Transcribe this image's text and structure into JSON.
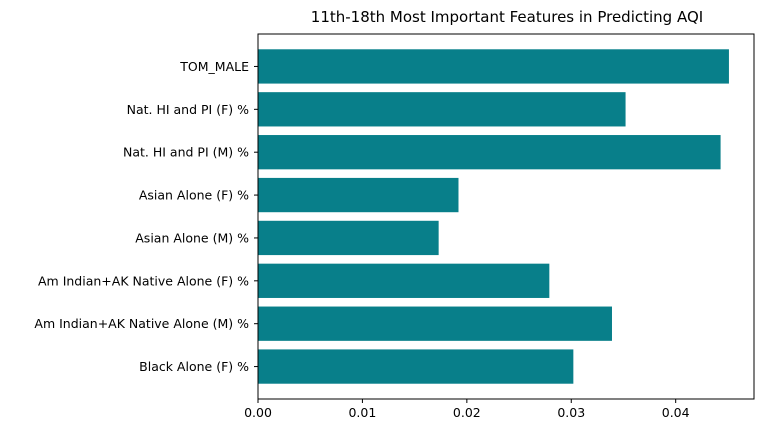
{
  "chart_data": {
    "type": "bar",
    "orientation": "horizontal",
    "title": "11th-18th Most Important Features in Predicting AQI",
    "xlabel": "",
    "ylabel": "",
    "categories": [
      "TOM_MALE",
      "Nat. HI and PI (F) %",
      "Nat. HI and PI (M) %",
      "Asian Alone (F) %",
      "Asian Alone (M) %",
      "Am Indian+AK Native Alone (F) %",
      "Am Indian+AK Native Alone (M) %",
      "Black Alone (F) %"
    ],
    "values": [
      0.0451,
      0.0352,
      0.0443,
      0.0192,
      0.0173,
      0.0279,
      0.0339,
      0.0302
    ],
    "xlim": [
      0,
      0.0475
    ],
    "xticks": [
      0,
      0.01,
      0.02,
      0.03,
      0.04
    ],
    "xtick_labels": [
      "0.00",
      "0.01",
      "0.02",
      "0.03",
      "0.04"
    ],
    "grid": false,
    "legend": "none",
    "bar_color": "#087f8a"
  }
}
